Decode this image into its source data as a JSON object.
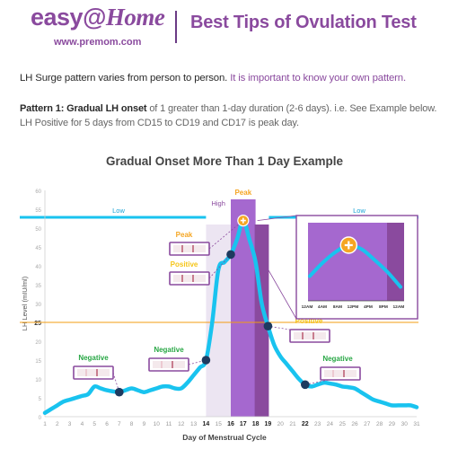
{
  "header": {
    "logo_text": "easy@Home",
    "logo_prefix": "easy@",
    "logo_home": "Home",
    "logo_url": "www.premom.com",
    "title": "Best Tips of Ovulation Test"
  },
  "intro": {
    "text": "LH Surge pattern varies from person to person.",
    "highlight": "It is important to know your own pattern."
  },
  "pattern": {
    "lead": "Pattern 1: Gradual LH onset",
    "line1_rest": "of 1 greater than 1-day duration (2-6 days). i.e. See Example below.",
    "line2": "LH Positive for 5 days from CD15 to CD19 and CD17 is peak day."
  },
  "chart_data": {
    "type": "line",
    "title": "Gradual Onset More Than 1 Day Example",
    "xlabel": "Day of Menstrual Cycle",
    "ylabel": "LH Level (mIU/ml)",
    "xlim": [
      1,
      31
    ],
    "ylim": [
      0,
      60
    ],
    "x_ticks": [
      1,
      2,
      3,
      4,
      5,
      6,
      7,
      8,
      9,
      10,
      11,
      12,
      13,
      14,
      15,
      16,
      17,
      18,
      19,
      20,
      21,
      22,
      23,
      24,
      25,
      26,
      27,
      28,
      29,
      30,
      31
    ],
    "highlight_ticks": [
      14,
      16,
      17,
      18,
      19,
      22
    ],
    "y_ticks": [
      0,
      5,
      10,
      15,
      20,
      25,
      30,
      35,
      40,
      45,
      50,
      55,
      60
    ],
    "reference_line": {
      "label": "25",
      "value": 25
    },
    "series": [
      {
        "x": [
          1,
          1.5,
          2,
          2.5,
          3,
          3.5,
          4,
          4.5,
          5,
          5.5,
          6,
          6.5,
          7,
          7.5,
          8,
          8.5,
          9,
          9.5,
          10,
          10.5,
          11,
          11.5,
          12,
          12.5,
          13,
          13.5,
          14,
          14.5,
          15,
          15.5,
          16,
          16.5,
          17,
          17.5,
          18,
          18.5,
          19,
          19.5,
          20,
          20.5,
          21,
          21.5,
          22,
          22.5,
          23,
          23.5,
          24,
          24.5,
          25,
          25.5,
          26,
          26.5,
          27,
          27.5,
          28,
          28.5,
          29,
          29.5,
          30,
          30.5,
          31
        ],
        "y": [
          1,
          2,
          3,
          4,
          4.5,
          5,
          5.5,
          6,
          8,
          7.5,
          7,
          6.7,
          6.5,
          7,
          7.5,
          7,
          6.5,
          7,
          7.5,
          8,
          8,
          7.5,
          7.5,
          9,
          11,
          13,
          15,
          25,
          39,
          41,
          43,
          47,
          52,
          47,
          41,
          30,
          24,
          19,
          16,
          14,
          12,
          10,
          8.5,
          8,
          8.5,
          9,
          8.8,
          8.5,
          8,
          7.8,
          7.5,
          6.5,
          5.5,
          4.5,
          4,
          3.5,
          3,
          3,
          3,
          3,
          2.5
        ],
        "color": "#19c3ef"
      }
    ],
    "markers": [
      {
        "x": 7,
        "y": 6.5,
        "status": "Negative"
      },
      {
        "x": 14,
        "y": 15,
        "status": "Negative"
      },
      {
        "x": 16,
        "y": 43,
        "status": "Positive"
      },
      {
        "x": 17,
        "y": 52,
        "status": "Peak"
      },
      {
        "x": 19,
        "y": 24,
        "status": "Positive"
      },
      {
        "x": 22,
        "y": 8.5,
        "status": "Negative"
      }
    ],
    "phases": [
      {
        "label": "Low",
        "from": 1,
        "to": 14
      },
      {
        "label": "High",
        "from": 14,
        "to": 16,
        "color": "#ece5f2"
      },
      {
        "label": "Peak",
        "from": 16,
        "to": 18,
        "color": "#a568cf"
      },
      {
        "label": "Ovulation",
        "from": 18,
        "to": 19,
        "color": "#8a4a9e"
      },
      {
        "label": "Low",
        "from": 19,
        "to": 31
      }
    ],
    "test_strips": [
      {
        "label": "Peak",
        "color": "#f5a623"
      },
      {
        "label": "Positive",
        "color": "#f5c518"
      },
      {
        "label": "Positive",
        "color": "#f5c518"
      },
      {
        "label": "Negative",
        "color": "#28a745"
      },
      {
        "label": "Negative",
        "color": "#28a745"
      },
      {
        "label": "Negative",
        "color": "#28a745"
      }
    ],
    "inset": {
      "time_labels": [
        "12AM",
        "4AM",
        "8AM",
        "12PM",
        "4PM",
        "8PM",
        "12AM"
      ],
      "values": [
        3,
        4,
        4.8,
        5.3,
        5,
        4.2,
        3.3,
        2.2
      ]
    }
  },
  "colors": {
    "brand": "#8a4a9e",
    "line": "#19c3ef",
    "threshold": "#f39c12",
    "low_band": "#19c3ef",
    "high": "#ece5f2",
    "peak": "#a568cf",
    "ovulation": "#8a4a9e",
    "negative": "#28a745",
    "positive": "#f5c518",
    "peak_label": "#f5a623"
  }
}
